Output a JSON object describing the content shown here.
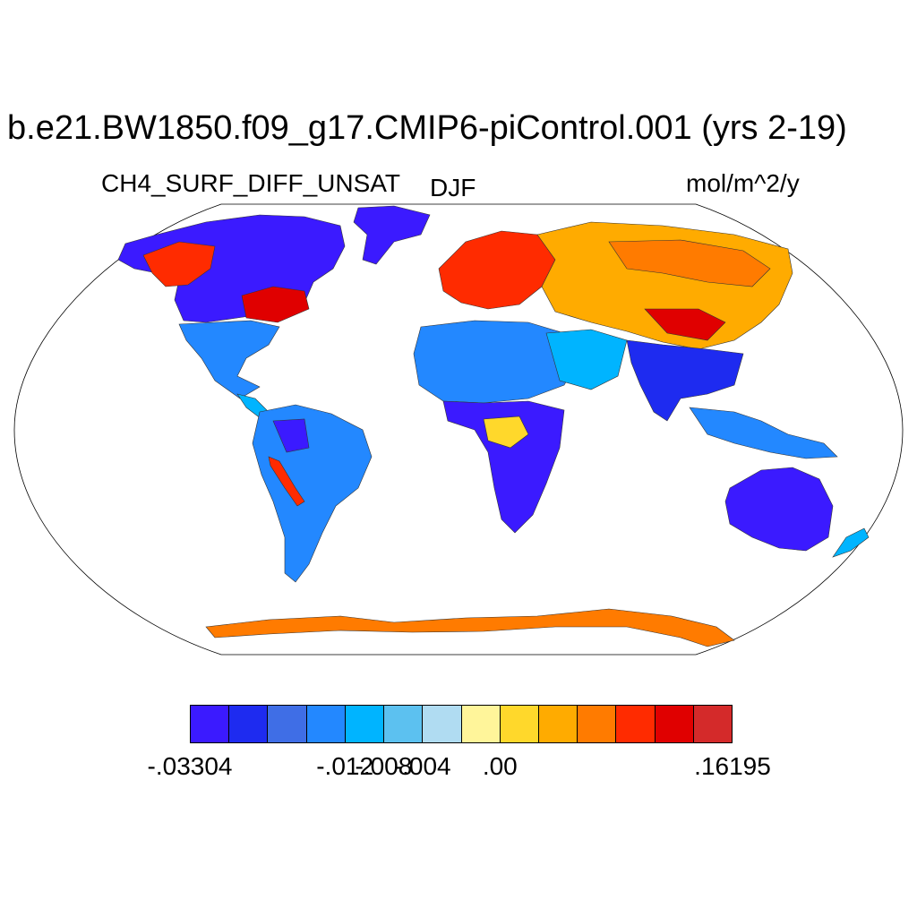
{
  "title": "b.e21.BW1850.f09_g17.CMIP6-piControl.001 (yrs 2-19)",
  "variable": "CH4_SURF_DIFF_UNSAT",
  "season": "DJF",
  "units": "mol/m^2/y",
  "map": {
    "projection": "Robinson",
    "regions": [
      {
        "name": "north-america-north",
        "color": "#ff7b00"
      },
      {
        "name": "north-america-south",
        "color": "#2388ff"
      },
      {
        "name": "greenland-coast",
        "color": "#ff7b00"
      },
      {
        "name": "south-america",
        "color": "#2388ff"
      },
      {
        "name": "europe",
        "color": "#ff2b00"
      },
      {
        "name": "asia-north",
        "color": "#ffab00"
      },
      {
        "name": "africa-sahara",
        "color": "#2388ff"
      },
      {
        "name": "africa-south",
        "color": "#3b1aff"
      },
      {
        "name": "south-asia",
        "color": "#1e2bf0"
      },
      {
        "name": "australia",
        "color": "#3b1aff"
      },
      {
        "name": "antarctica-coast",
        "color": "#ff7b00"
      }
    ]
  },
  "colorbar": {
    "colors": [
      "#3b1aff",
      "#1e2bf0",
      "#3f6ee6",
      "#2388ff",
      "#00b4ff",
      "#5cc1f0",
      "#b0dcf2",
      "#fff59a",
      "#ffd82b",
      "#ffab00",
      "#ff7b00",
      "#ff2b00",
      "#e00000",
      "#d42a2a"
    ],
    "labels": [
      {
        "text": "-.03304",
        "boundary": 0
      },
      {
        "text": "-.012",
        "boundary": 4
      },
      {
        "text": "-.008",
        "boundary": 5
      },
      {
        "text": "-.004",
        "boundary": 6
      },
      {
        "text": ".00",
        "boundary": 8
      },
      {
        "text": ".16195",
        "boundary": 14
      }
    ]
  }
}
